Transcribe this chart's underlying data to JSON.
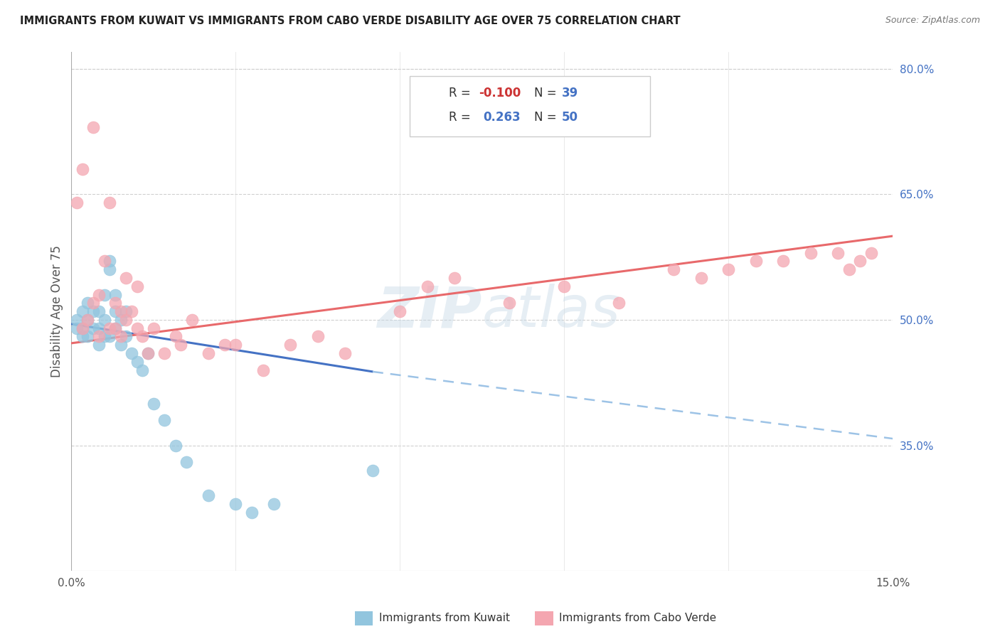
{
  "title": "IMMIGRANTS FROM KUWAIT VS IMMIGRANTS FROM CABO VERDE DISABILITY AGE OVER 75 CORRELATION CHART",
  "source": "Source: ZipAtlas.com",
  "ylabel": "Disability Age Over 75",
  "x_min": 0.0,
  "x_max": 0.15,
  "y_min": 0.2,
  "y_max": 0.82,
  "x_ticks": [
    0.0,
    0.03,
    0.06,
    0.09,
    0.12,
    0.15
  ],
  "y_tick_labels_right": [
    "35.0%",
    "50.0%",
    "65.0%",
    "80.0%"
  ],
  "y_tick_values_right": [
    0.35,
    0.5,
    0.65,
    0.8
  ],
  "color_kuwait": "#92c5de",
  "color_cabo": "#f4a6b0",
  "watermark": "ZIPatlas",
  "kuwait_x": [
    0.001,
    0.001,
    0.002,
    0.002,
    0.002,
    0.003,
    0.003,
    0.003,
    0.004,
    0.004,
    0.005,
    0.005,
    0.005,
    0.006,
    0.006,
    0.006,
    0.007,
    0.007,
    0.007,
    0.008,
    0.008,
    0.008,
    0.009,
    0.009,
    0.01,
    0.01,
    0.011,
    0.012,
    0.013,
    0.014,
    0.015,
    0.017,
    0.019,
    0.021,
    0.025,
    0.03,
    0.033,
    0.037,
    0.055
  ],
  "kuwait_y": [
    0.49,
    0.5,
    0.48,
    0.49,
    0.51,
    0.48,
    0.5,
    0.52,
    0.49,
    0.51,
    0.47,
    0.49,
    0.51,
    0.48,
    0.5,
    0.53,
    0.56,
    0.57,
    0.48,
    0.49,
    0.51,
    0.53,
    0.47,
    0.5,
    0.48,
    0.51,
    0.46,
    0.45,
    0.44,
    0.46,
    0.4,
    0.38,
    0.35,
    0.33,
    0.29,
    0.28,
    0.27,
    0.28,
    0.32
  ],
  "cabo_x": [
    0.001,
    0.002,
    0.002,
    0.003,
    0.004,
    0.004,
    0.005,
    0.005,
    0.006,
    0.007,
    0.007,
    0.008,
    0.008,
    0.009,
    0.009,
    0.01,
    0.01,
    0.011,
    0.012,
    0.012,
    0.013,
    0.014,
    0.015,
    0.017,
    0.019,
    0.02,
    0.022,
    0.025,
    0.028,
    0.03,
    0.035,
    0.04,
    0.045,
    0.05,
    0.06,
    0.065,
    0.07,
    0.08,
    0.09,
    0.1,
    0.11,
    0.115,
    0.12,
    0.125,
    0.13,
    0.135,
    0.14,
    0.142,
    0.144,
    0.146
  ],
  "cabo_y": [
    0.64,
    0.49,
    0.68,
    0.5,
    0.52,
    0.73,
    0.48,
    0.53,
    0.57,
    0.49,
    0.64,
    0.49,
    0.52,
    0.48,
    0.51,
    0.5,
    0.55,
    0.51,
    0.49,
    0.54,
    0.48,
    0.46,
    0.49,
    0.46,
    0.48,
    0.47,
    0.5,
    0.46,
    0.47,
    0.47,
    0.44,
    0.47,
    0.48,
    0.46,
    0.51,
    0.54,
    0.55,
    0.52,
    0.54,
    0.52,
    0.56,
    0.55,
    0.56,
    0.57,
    0.57,
    0.58,
    0.58,
    0.56,
    0.57,
    0.58
  ],
  "kuwait_line_x0": 0.0,
  "kuwait_line_x1": 0.055,
  "kuwait_line_x2": 0.15,
  "kuwait_line_y0": 0.495,
  "kuwait_line_y1": 0.438,
  "kuwait_line_y2": 0.358,
  "cabo_line_x0": 0.0,
  "cabo_line_x1": 0.15,
  "cabo_line_y0": 0.472,
  "cabo_line_y1": 0.6
}
